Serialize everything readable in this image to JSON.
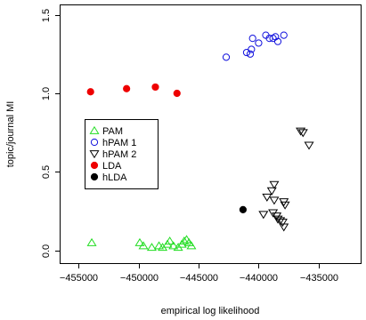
{
  "chart_data": {
    "type": "scatter",
    "title": "",
    "xlabel": "empirical log likelihood",
    "ylabel": "topic/journal MI",
    "xlim": [
      -456500,
      -431500
    ],
    "ylim": [
      -0.08,
      1.56
    ],
    "grid": false,
    "legend_position": "middle-left",
    "x_ticks": [
      {
        "value": -455000,
        "label": "−455000"
      },
      {
        "value": -450000,
        "label": "−450000"
      },
      {
        "value": -445000,
        "label": "−445000"
      },
      {
        "value": -440000,
        "label": "−440000"
      },
      {
        "value": -435000,
        "label": "−435000"
      }
    ],
    "y_ticks": [
      {
        "value": 0.0,
        "label": "0.0"
      },
      {
        "value": 0.5,
        "label": "0.5"
      },
      {
        "value": 1.0,
        "label": "1.0"
      },
      {
        "value": 1.5,
        "label": "1.5"
      }
    ],
    "series": [
      {
        "name": "PAM",
        "marker": "triangle-up",
        "color": "#22dd22",
        "filled": false,
        "points": [
          [
            -453900,
            0.05
          ],
          [
            -449900,
            0.05
          ],
          [
            -449600,
            0.03
          ],
          [
            -448900,
            0.02
          ],
          [
            -448300,
            0.03
          ],
          [
            -448000,
            0.02
          ],
          [
            -447600,
            0.04
          ],
          [
            -447400,
            0.06
          ],
          [
            -447100,
            0.03
          ],
          [
            -446700,
            0.02
          ],
          [
            -446400,
            0.04
          ],
          [
            -446200,
            0.06
          ],
          [
            -446000,
            0.07
          ],
          [
            -445800,
            0.05
          ],
          [
            -445600,
            0.03
          ]
        ]
      },
      {
        "name": "hPAM 1",
        "marker": "circle",
        "color": "#1010dd",
        "filled": false,
        "points": [
          [
            -442700,
            1.23
          ],
          [
            -441000,
            1.26
          ],
          [
            -440700,
            1.25
          ],
          [
            -440600,
            1.28
          ],
          [
            -440500,
            1.35
          ],
          [
            -440000,
            1.32
          ],
          [
            -439400,
            1.37
          ],
          [
            -439100,
            1.35
          ],
          [
            -438800,
            1.35
          ],
          [
            -438600,
            1.36
          ],
          [
            -438400,
            1.33
          ],
          [
            -437900,
            1.37
          ]
        ]
      },
      {
        "name": "hPAM 2",
        "marker": "triangle-down",
        "color": "#000000",
        "filled": false,
        "points": [
          [
            -436500,
            0.76
          ],
          [
            -436300,
            0.75
          ],
          [
            -435800,
            0.67
          ],
          [
            -439300,
            0.34
          ],
          [
            -438900,
            0.38
          ],
          [
            -438700,
            0.42
          ],
          [
            -438700,
            0.32
          ],
          [
            -437900,
            0.31
          ],
          [
            -437800,
            0.29
          ],
          [
            -439600,
            0.23
          ],
          [
            -438800,
            0.24
          ],
          [
            -438500,
            0.22
          ],
          [
            -438400,
            0.2
          ],
          [
            -438200,
            0.19
          ],
          [
            -438000,
            0.18
          ],
          [
            -437900,
            0.15
          ]
        ]
      },
      {
        "name": "LDA",
        "marker": "filled-circle",
        "color": "#ee0000",
        "filled": true,
        "points": [
          [
            -454000,
            1.01
          ],
          [
            -451000,
            1.03
          ],
          [
            -448600,
            1.04
          ],
          [
            -446800,
            1.0
          ]
        ]
      },
      {
        "name": "hLDA",
        "marker": "filled-circle",
        "color": "#000000",
        "filled": true,
        "points": [
          [
            -441300,
            0.26
          ]
        ]
      }
    ]
  }
}
